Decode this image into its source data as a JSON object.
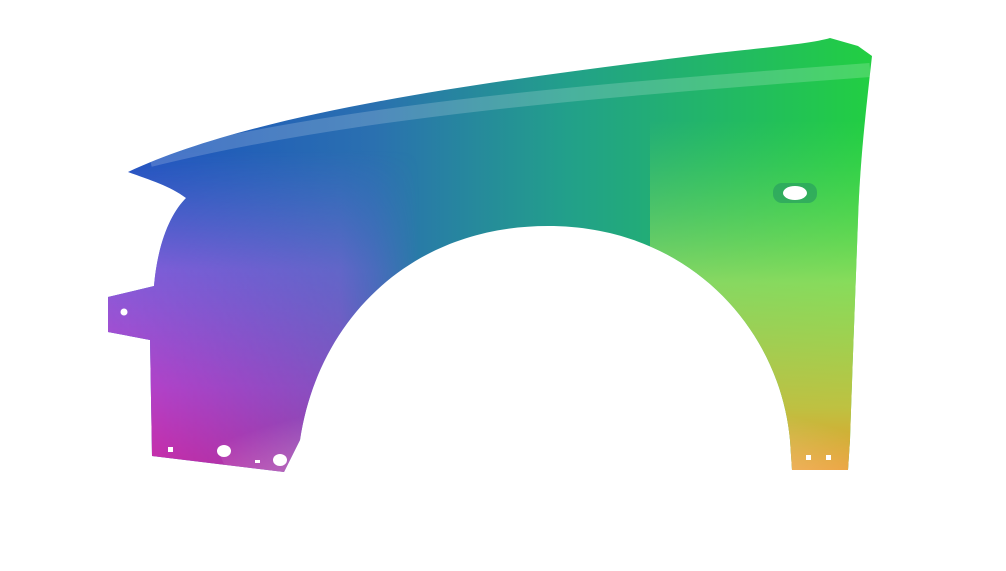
{
  "image": {
    "subject": "car-fender",
    "colors": {
      "blue": "#1a4fc0",
      "teal": "#22a08a",
      "green": "#22d040",
      "light_green": "#a0e060",
      "orange": "#f09020",
      "violet": "#a050e0",
      "magenta": "#e0209a",
      "background": "#ffffff"
    }
  }
}
